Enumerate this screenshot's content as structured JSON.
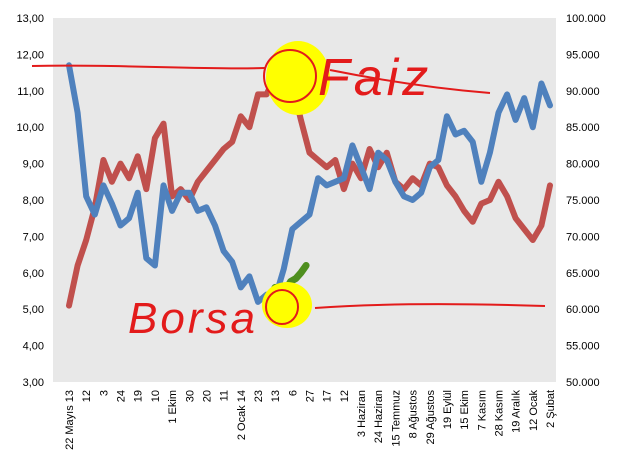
{
  "colors": {
    "plot_background": "#e8e8e8",
    "interest_line": "#c0504d",
    "index_line": "#4f81bd",
    "highlight_green": "#4f8f1f",
    "annotation_red": "#e31b1b",
    "annotation_yellow": "#ffff00"
  },
  "annotations": {
    "top_label": "Faiz",
    "bottom_label": "Borsa"
  },
  "chart_data": {
    "type": "line",
    "title": "",
    "xlabel": "",
    "ylabel": "",
    "legend": "none",
    "grid": false,
    "x_tick_labels": [
      "22 Mayıs 13",
      "12",
      "3",
      "24",
      "19",
      "10",
      "1 Ekim",
      "30",
      "20",
      "11",
      "2 Ocak 14",
      "23",
      "13",
      "6",
      "27",
      "17",
      "12",
      "3 Haziran",
      "24 Haziran",
      "15 Temmuz",
      "8 Ağustos",
      "29 Ağustos",
      "19 Eylül",
      "15 Ekim",
      "7 Kasım",
      "28 Kasım",
      "19 Aralık",
      "12 Ocak",
      "2 Şubat"
    ],
    "y_left": {
      "min": 3,
      "max": 13,
      "step": 1,
      "tick_labels": [
        "3,00",
        "4,00",
        "5,00",
        "6,00",
        "7,00",
        "8,00",
        "9,00",
        "10,00",
        "11,00",
        "12,00",
        "13,00"
      ]
    },
    "y_right": {
      "min": 50000,
      "max": 100000,
      "step": 5000,
      "tick_labels": [
        "50.000",
        "55.000",
        "60.000",
        "65.000",
        "70.000",
        "75.000",
        "80.000",
        "85.000",
        "90.000",
        "95.000",
        "100.000"
      ]
    },
    "series": [
      {
        "axis": "left",
        "color": "#c0504d",
        "x": [
          0,
          0.5,
          1,
          1.5,
          2,
          2.5,
          3,
          3.5,
          4,
          4.5,
          5,
          5.5,
          6,
          6.5,
          7,
          7.5,
          8,
          8.5,
          9,
          9.5,
          10,
          10.5,
          11,
          11.5,
          12,
          12.5,
          13,
          13.5,
          14,
          14.5,
          15,
          15.5,
          16,
          16.5,
          17,
          17.5,
          18,
          18.5,
          19,
          19.5,
          20,
          20.5,
          21,
          21.5,
          22,
          22.5,
          23,
          23.5,
          24,
          24.5,
          25,
          25.5,
          26,
          26.5,
          27,
          27.5,
          28
        ],
        "values": [
          5.1,
          6.2,
          6.9,
          7.8,
          9.1,
          8.5,
          9.0,
          8.6,
          9.2,
          8.3,
          9.7,
          10.1,
          8.1,
          8.3,
          8.0,
          8.5,
          8.8,
          9.1,
          9.4,
          9.6,
          10.3,
          10.0,
          10.9,
          10.9,
          11.4,
          11.7,
          11.2,
          10.2,
          9.3,
          9.1,
          8.9,
          9.1,
          8.3,
          9.0,
          8.6,
          9.4,
          8.9,
          9.3,
          8.5,
          8.3,
          8.6,
          8.4,
          9.0,
          8.9,
          8.4,
          8.1,
          7.7,
          7.4,
          7.9,
          8.0,
          8.5,
          8.1,
          7.5,
          7.2,
          6.9,
          7.3,
          8.4
        ]
      },
      {
        "axis": "right",
        "color": "#4f81bd",
        "x": [
          0,
          0.5,
          1,
          1.5,
          2,
          2.5,
          3,
          3.5,
          4,
          4.5,
          5,
          5.5,
          6,
          6.5,
          7,
          7.5,
          8,
          8.5,
          9,
          9.5,
          10,
          10.5,
          11,
          11.5,
          12,
          12.5,
          13,
          13.5,
          14,
          14.5,
          15,
          15.5,
          16,
          16.5,
          17,
          17.5,
          18,
          18.5,
          19,
          19.5,
          20,
          20.5,
          21,
          21.5,
          22,
          22.5,
          23,
          23.5,
          24,
          24.5,
          25,
          25.5,
          26,
          26.5,
          27,
          27.5,
          28
        ],
        "values": [
          93500,
          87000,
          75500,
          73000,
          77000,
          74500,
          71500,
          72500,
          76000,
          67000,
          66000,
          77000,
          73500,
          76000,
          76000,
          73500,
          74000,
          71500,
          68000,
          66500,
          63000,
          64500,
          61000,
          62000,
          61500,
          65500,
          71000,
          72000,
          73000,
          78000,
          77000,
          77500,
          78000,
          82500,
          79500,
          76500,
          81500,
          80500,
          77500,
          75500,
          75000,
          76000,
          79500,
          80500,
          86500,
          84000,
          84500,
          83000,
          77500,
          81500,
          87000,
          89500,
          86000,
          89000,
          85000,
          91000,
          88000
        ]
      },
      {
        "axis": "right",
        "color": "#4f8f1f",
        "name": "",
        "x": [
          11.8,
          12.0,
          12.3,
          12.6,
          12.9,
          13.2,
          13.5,
          13.8
        ],
        "values": [
          62000,
          63000,
          61800,
          62500,
          63800,
          64200,
          65000,
          66000
        ]
      }
    ]
  }
}
